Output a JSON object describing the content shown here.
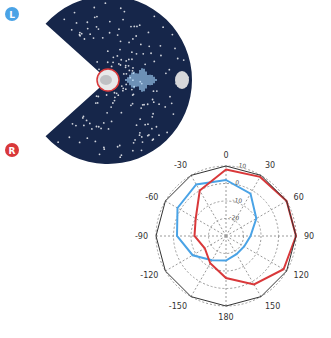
{
  "chart_data": {
    "type": "radar",
    "categories": [
      0,
      30,
      60,
      90,
      120,
      150,
      180,
      -150,
      -120,
      -90,
      -60,
      -30
    ],
    "series": [
      {
        "name": "L",
        "color": "#4aa3e6",
        "values": [
          2,
          -2,
          -10,
          -16,
          -18,
          -18,
          -16,
          -14,
          -8,
          -2,
          2,
          4
        ]
      },
      {
        "name": "R",
        "color": "#d9383a",
        "values": [
          8,
          9,
          10,
          10,
          8,
          2,
          -6,
          -12,
          -16,
          -12,
          -10,
          0
        ]
      }
    ],
    "ylim": [
      -30,
      10
    ],
    "yticks": [
      -20,
      -10,
      0,
      10
    ],
    "grid": true
  }
}
